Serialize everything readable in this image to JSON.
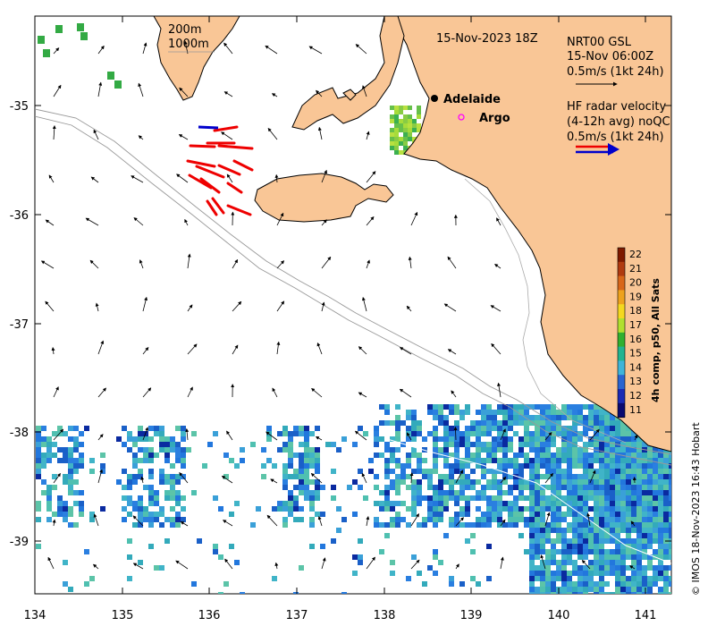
{
  "map": {
    "date_label": "15-Nov-2023 18Z",
    "contours": [
      "200m",
      "1000m"
    ],
    "places": [
      {
        "name": "Adelaide",
        "marker": "dot"
      },
      {
        "name": "Argo",
        "marker": "circle",
        "color": "#ff00ff"
      }
    ],
    "model_legend": [
      "NRT00 GSL",
      "15-Nov 06:00Z",
      "0.5m/s (1kt 24h)"
    ],
    "radar_legend": [
      "HF radar velocity",
      "(4-12h avg) noQC",
      "0.5m/s (1kt 24h)"
    ],
    "x_ticks": [
      "134",
      "135",
      "136",
      "137",
      "138",
      "139",
      "140",
      "141"
    ],
    "y_ticks": [
      "-35",
      "-36",
      "-37",
      "-38",
      "-39"
    ],
    "colorbar": {
      "label": "4h comp, p50, All Sats",
      "ticks": [
        "22",
        "21",
        "20",
        "19",
        "18",
        "17",
        "16",
        "15",
        "14",
        "13",
        "12",
        "11"
      ],
      "colors": [
        "#7f1a00",
        "#b03a10",
        "#d8661a",
        "#eea21e",
        "#f4d820",
        "#b0e030",
        "#30b030",
        "#22b490",
        "#40b4d8",
        "#2a64d0",
        "#1a2ab4",
        "#0a0a70"
      ]
    },
    "credit": "© IMOS 18-Nov-2023 16:43 Hobart",
    "colors": {
      "land": "#f9c696",
      "sst_warm": "#88cc44",
      "sst_mid": "#33aabb",
      "sst_cool": "#2277dd",
      "radar_red": "#ee0000",
      "radar_blue": "#0000cc"
    }
  }
}
